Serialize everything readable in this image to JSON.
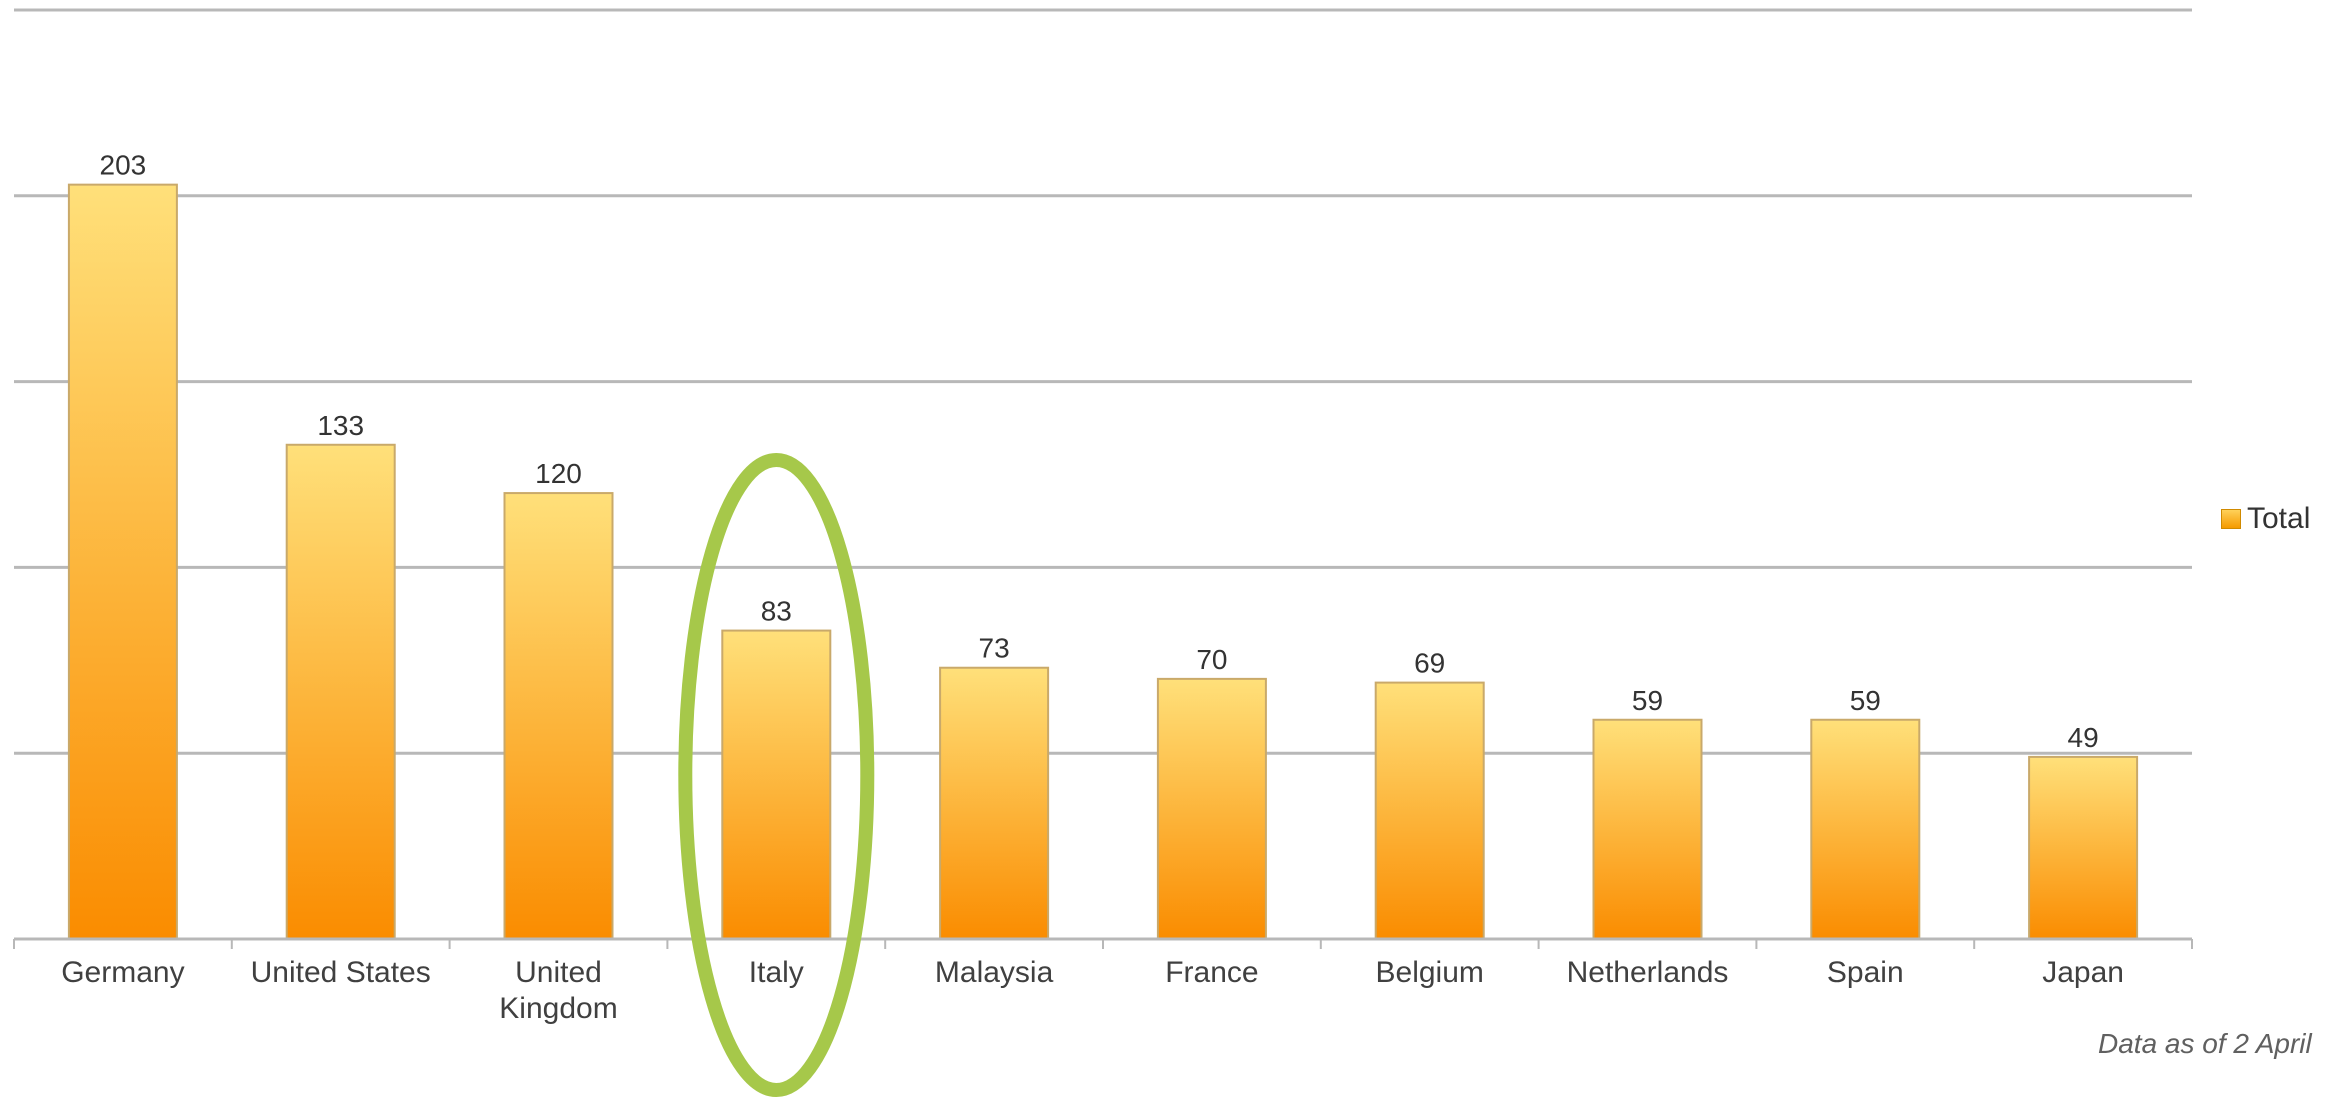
{
  "chart_data": {
    "type": "bar",
    "categories": [
      "Germany",
      "United States",
      "United Kingdom",
      "Italy",
      "Malaysia",
      "France",
      "Belgium",
      "Netherlands",
      "Spain",
      "Japan"
    ],
    "category_lines": [
      [
        "Germany"
      ],
      [
        "United States"
      ],
      [
        "United",
        "Kingdom"
      ],
      [
        "Italy"
      ],
      [
        "Malaysia"
      ],
      [
        "France"
      ],
      [
        "Belgium"
      ],
      [
        "Netherlands"
      ],
      [
        "Spain"
      ],
      [
        "Japan"
      ]
    ],
    "series": [
      {
        "name": "Total",
        "values": [
          203,
          133,
          120,
          83,
          73,
          70,
          69,
          59,
          59,
          49
        ]
      }
    ],
    "ylim": [
      0,
      250
    ],
    "grid": true,
    "legend_position": "right",
    "highlighted_category": "Italy",
    "annotation": "Data as of 2 April",
    "colors": {
      "bar_top": "#ffe07a",
      "bar_bottom": "#fa8c00",
      "bar_edge": "#c9a96a",
      "grid": "#b8b8b8",
      "highlight_ellipse": "#a6c84a"
    }
  }
}
